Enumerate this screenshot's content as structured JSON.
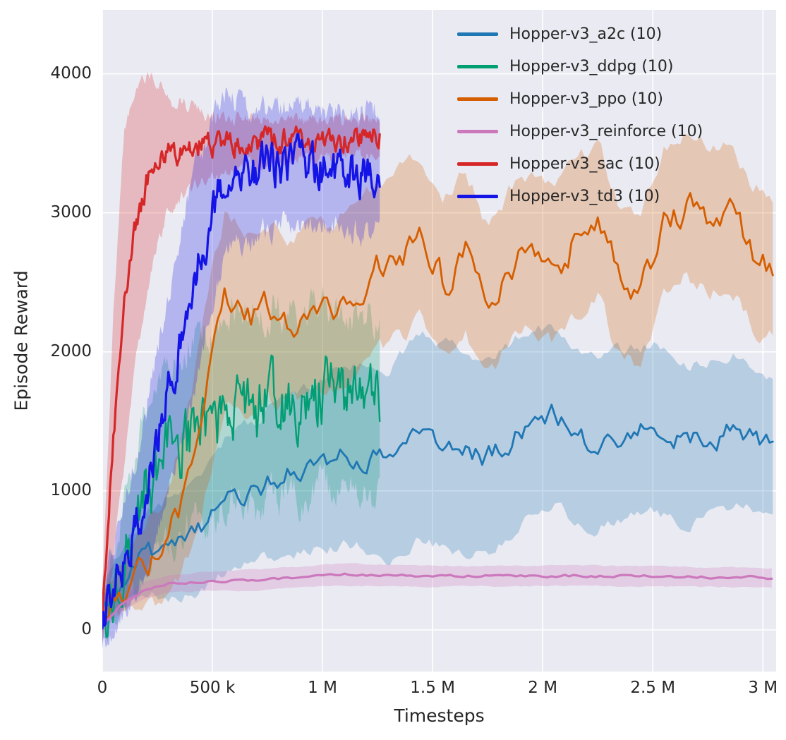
{
  "figure": {
    "bg": "#ffffff",
    "plot_bg": "#eaeaf2",
    "grid_color": "#ffffff",
    "text_color": "#262626",
    "band_alpha": 0.25
  },
  "chart_data": {
    "type": "line",
    "title": "",
    "xlabel": "Timesteps",
    "ylabel": "Episode Reward",
    "xlim": [
      0,
      3060000
    ],
    "ylim": [
      -300,
      4460
    ],
    "grid": true,
    "legend_position": "upper right",
    "xticks": [
      {
        "v": 0,
        "label": "0"
      },
      {
        "v": 500000,
        "label": "500 k"
      },
      {
        "v": 1000000,
        "label": "1 M"
      },
      {
        "v": 1500000,
        "label": "1.5 M"
      },
      {
        "v": 2000000,
        "label": "2 M"
      },
      {
        "v": 2500000,
        "label": "2.5 M"
      },
      {
        "v": 3000000,
        "label": "3 M"
      }
    ],
    "yticks": [
      {
        "v": 0,
        "label": "0"
      },
      {
        "v": 1000,
        "label": "1000"
      },
      {
        "v": 2000,
        "label": "2000"
      },
      {
        "v": 3000,
        "label": "3000"
      },
      {
        "v": 4000,
        "label": "4000"
      }
    ],
    "series": [
      {
        "name": "Hopper-v3_a2c (10)",
        "color": "#1f77b4",
        "seed": 11,
        "step": 15000,
        "end": 3050000,
        "noise": 100,
        "lw": 2.8,
        "anchors": [
          [
            0,
            150
          ],
          [
            100000,
            400
          ],
          [
            200000,
            550
          ],
          [
            300000,
            600
          ],
          [
            400000,
            650
          ],
          [
            500000,
            800
          ],
          [
            600000,
            950
          ],
          [
            700000,
            1000
          ],
          [
            800000,
            1100
          ],
          [
            900000,
            1150
          ],
          [
            1000000,
            1200
          ],
          [
            1150000,
            1250
          ],
          [
            1300000,
            1200
          ],
          [
            1450000,
            1400
          ],
          [
            1600000,
            1300
          ],
          [
            1750000,
            1250
          ],
          [
            1900000,
            1450
          ],
          [
            2050000,
            1550
          ],
          [
            2200000,
            1350
          ],
          [
            2350000,
            1400
          ],
          [
            2500000,
            1450
          ],
          [
            2650000,
            1350
          ],
          [
            2800000,
            1400
          ],
          [
            2900000,
            1450
          ],
          [
            3050000,
            1300
          ]
        ],
        "band": [
          [
            0,
            150
          ],
          [
            300000,
            350
          ],
          [
            600000,
            500
          ],
          [
            1000000,
            600
          ],
          [
            1500000,
            750
          ],
          [
            2000000,
            650
          ],
          [
            2500000,
            600
          ],
          [
            3050000,
            500
          ]
        ]
      },
      {
        "name": "Hopper-v3_ddpg (10)",
        "color": "#029e73",
        "seed": 22,
        "step": 6000,
        "end": 1260000,
        "noise": 300,
        "lw": 2.4,
        "anchors": [
          [
            0,
            100
          ],
          [
            100000,
            600
          ],
          [
            200000,
            1000
          ],
          [
            300000,
            1300
          ],
          [
            400000,
            1400
          ],
          [
            500000,
            1500
          ],
          [
            600000,
            1600
          ],
          [
            700000,
            1550
          ],
          [
            800000,
            1650
          ],
          [
            900000,
            1600
          ],
          [
            1000000,
            1700
          ],
          [
            1100000,
            1650
          ],
          [
            1260000,
            1600
          ]
        ],
        "band": [
          [
            0,
            150
          ],
          [
            150000,
            500
          ],
          [
            300000,
            650
          ],
          [
            600000,
            700
          ],
          [
            900000,
            650
          ],
          [
            1260000,
            650
          ]
        ]
      },
      {
        "name": "Hopper-v3_ppo (10)",
        "color": "#d55e00",
        "seed": 33,
        "step": 15000,
        "end": 3050000,
        "noise": 140,
        "lw": 2.8,
        "anchors": [
          [
            0,
            150
          ],
          [
            100000,
            300
          ],
          [
            200000,
            450
          ],
          [
            300000,
            600
          ],
          [
            400000,
            1100
          ],
          [
            500000,
            1900
          ],
          [
            560000,
            2350
          ],
          [
            650000,
            2200
          ],
          [
            750000,
            2300
          ],
          [
            850000,
            2200
          ],
          [
            950000,
            2350
          ],
          [
            1050000,
            2300
          ],
          [
            1150000,
            2450
          ],
          [
            1250000,
            2600
          ],
          [
            1350000,
            2700
          ],
          [
            1450000,
            2800
          ],
          [
            1550000,
            2500
          ],
          [
            1650000,
            2750
          ],
          [
            1750000,
            2350
          ],
          [
            1850000,
            2600
          ],
          [
            1950000,
            2700
          ],
          [
            2050000,
            2600
          ],
          [
            2150000,
            2800
          ],
          [
            2250000,
            2950
          ],
          [
            2350000,
            2500
          ],
          [
            2450000,
            2450
          ],
          [
            2550000,
            2900
          ],
          [
            2650000,
            3050
          ],
          [
            2750000,
            2950
          ],
          [
            2850000,
            3000
          ],
          [
            2950000,
            2700
          ],
          [
            3050000,
            2600
          ]
        ],
        "band": [
          [
            0,
            100
          ],
          [
            300000,
            400
          ],
          [
            500000,
            700
          ],
          [
            800000,
            600
          ],
          [
            1200000,
            600
          ],
          [
            1800000,
            550
          ],
          [
            2400000,
            550
          ],
          [
            3050000,
            500
          ]
        ]
      },
      {
        "name": "Hopper-v3_reinforce (10)",
        "color": "#cc78bc",
        "seed": 44,
        "step": 20000,
        "end": 3050000,
        "noise": 12,
        "lw": 3.2,
        "anchors": [
          [
            0,
            20
          ],
          [
            100000,
            200
          ],
          [
            200000,
            290
          ],
          [
            300000,
            330
          ],
          [
            500000,
            350
          ],
          [
            700000,
            360
          ],
          [
            900000,
            380
          ],
          [
            1100000,
            400
          ],
          [
            1300000,
            390
          ],
          [
            1700000,
            385
          ],
          [
            2100000,
            390
          ],
          [
            2500000,
            385
          ],
          [
            3050000,
            375
          ]
        ],
        "band": [
          [
            0,
            30
          ],
          [
            200000,
            60
          ],
          [
            500000,
            70
          ],
          [
            1000000,
            80
          ],
          [
            1500000,
            75
          ],
          [
            3050000,
            70
          ]
        ]
      },
      {
        "name": "Hopper-v3_sac (10)",
        "color": "#d62728",
        "seed": 55,
        "step": 5000,
        "end": 1260000,
        "noise": 100,
        "lw": 3.2,
        "anchors": [
          [
            0,
            100
          ],
          [
            50000,
            1400
          ],
          [
            100000,
            2400
          ],
          [
            150000,
            2900
          ],
          [
            200000,
            3200
          ],
          [
            250000,
            3350
          ],
          [
            300000,
            3420
          ],
          [
            400000,
            3470
          ],
          [
            600000,
            3500
          ],
          [
            800000,
            3520
          ],
          [
            1000000,
            3530
          ],
          [
            1260000,
            3550
          ]
        ],
        "band": [
          [
            0,
            200
          ],
          [
            50000,
            900
          ],
          [
            100000,
            1200
          ],
          [
            200000,
            800
          ],
          [
            300000,
            400
          ],
          [
            500000,
            200
          ],
          [
            800000,
            150
          ],
          [
            1260000,
            120
          ]
        ]
      },
      {
        "name": "Hopper-v3_td3 (10)",
        "color": "#1414e6",
        "seed": 66,
        "step": 5000,
        "end": 1260000,
        "noise": 180,
        "lw": 3.2,
        "anchors": [
          [
            0,
            100
          ],
          [
            100000,
            500
          ],
          [
            200000,
            1000
          ],
          [
            300000,
            1700
          ],
          [
            400000,
            2400
          ],
          [
            500000,
            3000
          ],
          [
            560000,
            3300
          ],
          [
            700000,
            3300
          ],
          [
            900000,
            3350
          ],
          [
            1100000,
            3300
          ],
          [
            1260000,
            3300
          ]
        ],
        "band": [
          [
            0,
            200
          ],
          [
            200000,
            600
          ],
          [
            400000,
            800
          ],
          [
            600000,
            500
          ],
          [
            900000,
            400
          ],
          [
            1260000,
            450
          ]
        ]
      }
    ]
  }
}
